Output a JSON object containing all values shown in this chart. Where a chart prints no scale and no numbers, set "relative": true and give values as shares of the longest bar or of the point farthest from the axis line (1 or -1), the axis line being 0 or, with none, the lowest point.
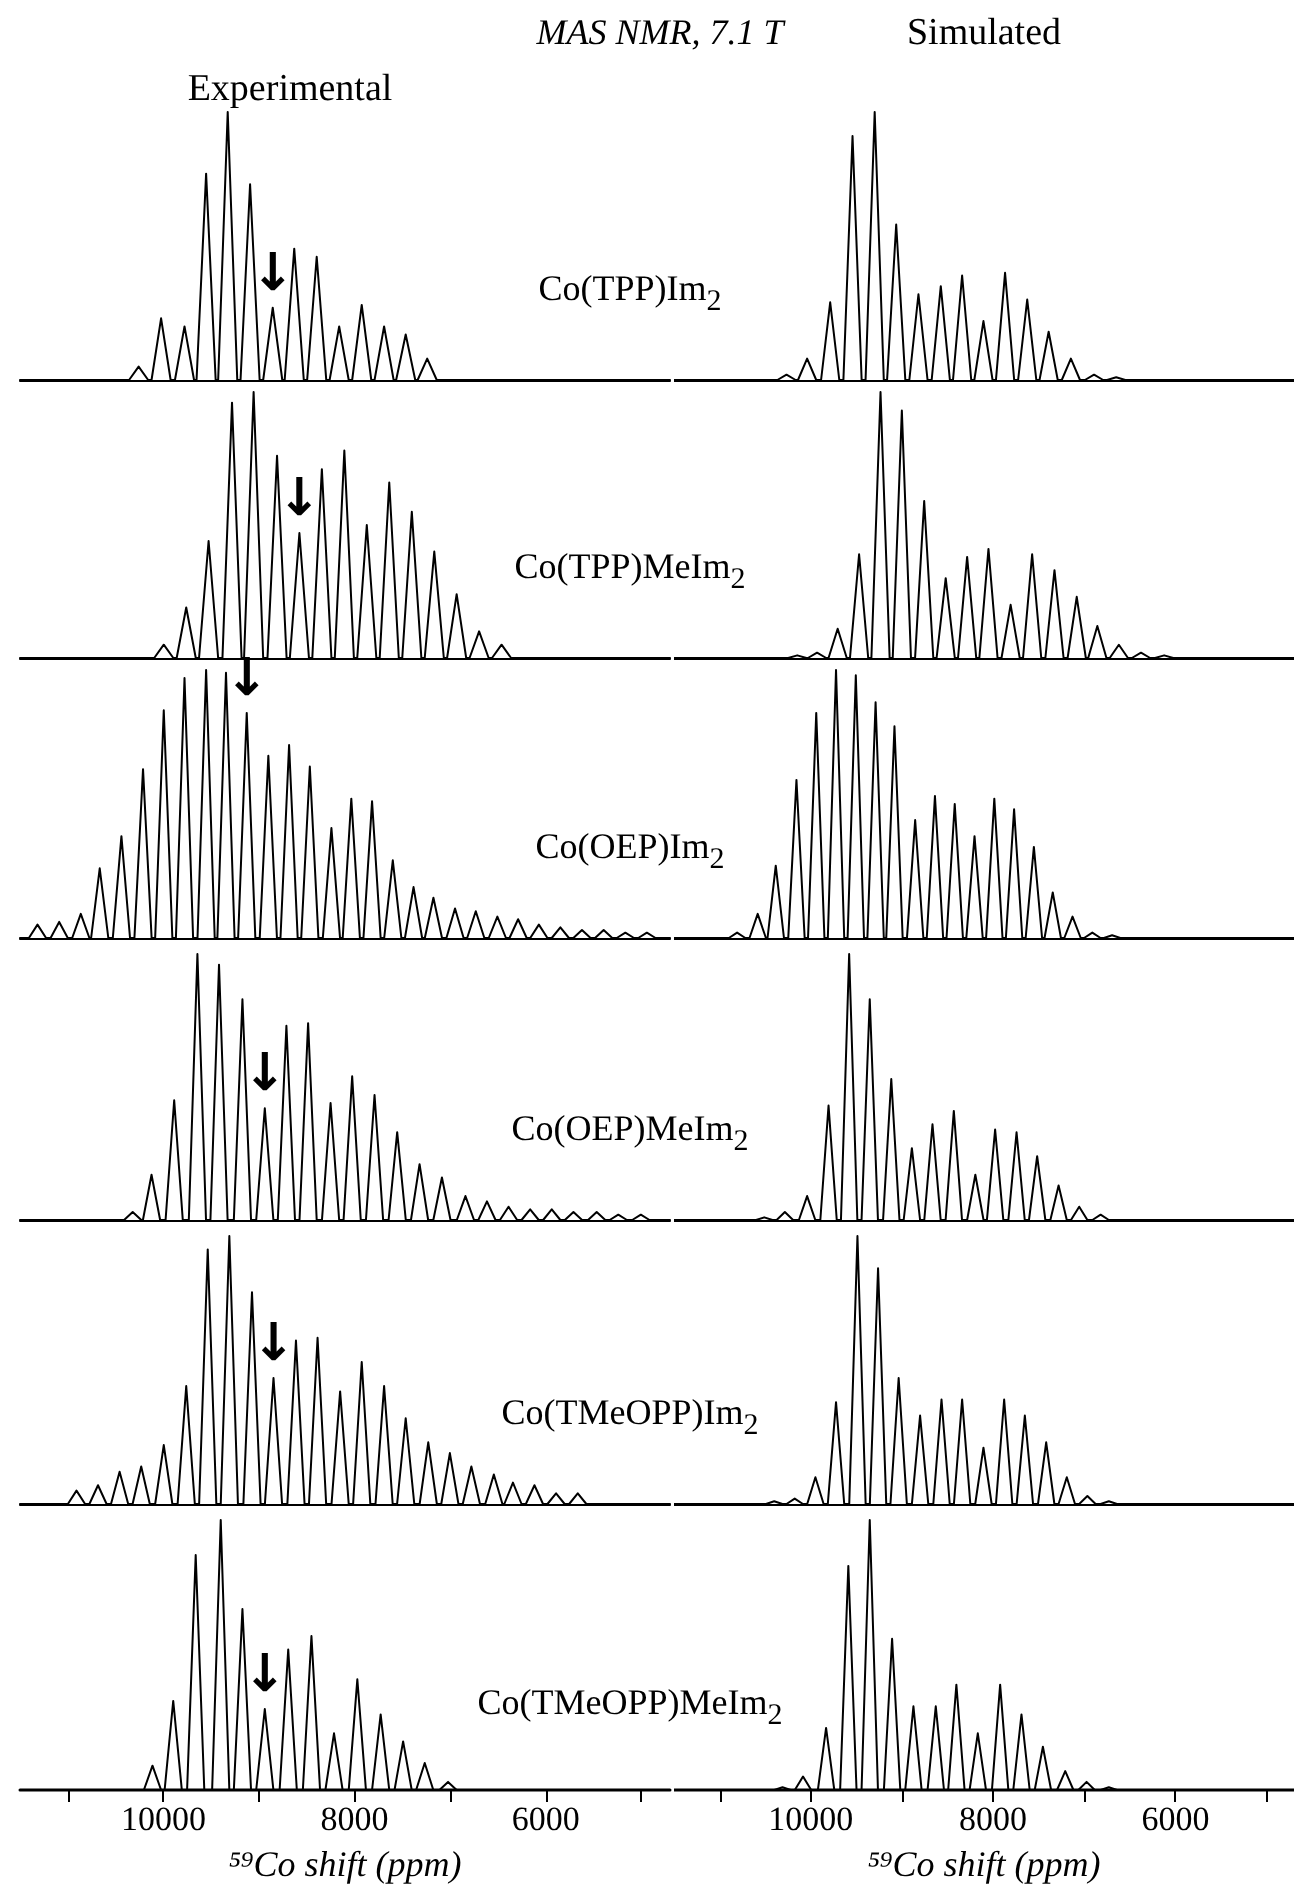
{
  "chart_data": [
    {
      "type": "line",
      "relative": true,
      "title": "Experimental",
      "color": "#000000",
      "xlim": [
        11500,
        4700
      ],
      "annotations": [
        "MAS NMR, 7.1 T",
        {
          "text": "↓",
          "x": 8856,
          "y": 0.27
        }
      ],
      "x": [
        11500,
        10359,
        10259,
        10159,
        10124,
        10024,
        9924,
        9879,
        9779,
        9679,
        9653,
        9553,
        9453,
        9427,
        9327,
        9227,
        9193,
        9093,
        8993,
        8956,
        8856,
        8756,
        8731,
        8631,
        8531,
        8496,
        8396,
        8296,
        8261,
        8161,
        8061,
        8025,
        7925,
        7825,
        7791,
        7691,
        7591,
        7565,
        7465,
        7365,
        7340,
        7240,
        7140,
        4700
      ],
      "values": [
        0,
        0,
        0.05,
        0,
        0,
        0.23,
        0,
        0,
        0.2,
        0,
        0,
        0.77,
        0,
        0,
        1,
        0,
        0,
        0.73,
        0,
        0,
        0.27,
        0,
        0,
        0.49,
        0,
        0,
        0.46,
        0,
        0,
        0.2,
        0,
        0,
        0.28,
        0,
        0,
        0.2,
        0,
        0,
        0.17,
        0,
        0,
        0.08,
        0,
        0
      ]
    },
    {
      "type": "line",
      "relative": true,
      "title": "Simulated",
      "color": "#000000",
      "xlim": [
        11500,
        4700
      ],
      "annotations": [
        "Co(TPP)Im$_{2}$"
      ],
      "x": [
        11500,
        10366,
        10266,
        10166,
        10140,
        10040,
        9940,
        9887,
        9787,
        9687,
        9642,
        9542,
        9442,
        9399,
        9299,
        9199,
        9163,
        9063,
        8963,
        8919,
        8819,
        8719,
        8674,
        8574,
        8474,
        8440,
        8340,
        8240,
        8206,
        8106,
        8006,
        7969,
        7869,
        7769,
        7726,
        7626,
        7526,
        7491,
        7391,
        7291,
        7247,
        7147,
        7047,
        6993,
        6893,
        6793,
        6750,
        6650,
        6550,
        4700
      ],
      "values": [
        0,
        0,
        0.02,
        0,
        0,
        0.08,
        0,
        0,
        0.29,
        0,
        0,
        0.91,
        0,
        0,
        1,
        0,
        0,
        0.58,
        0,
        0,
        0.32,
        0,
        0,
        0.35,
        0,
        0,
        0.39,
        0,
        0,
        0.22,
        0,
        0,
        0.4,
        0,
        0,
        0.3,
        0,
        0,
        0.18,
        0,
        0,
        0.08,
        0,
        0,
        0.02,
        0,
        0,
        0.01,
        0,
        0
      ]
    },
    {
      "type": "line",
      "relative": true,
      "color": "#000000",
      "xlim": [
        11500,
        4700
      ],
      "annotations": [
        {
          "text": "↓",
          "x": 8577,
          "y": 0.47
        }
      ],
      "x": [
        11500,
        10096,
        9996,
        9896,
        9861,
        9761,
        9661,
        9627,
        9527,
        9427,
        9382,
        9282,
        9182,
        9156,
        9056,
        8956,
        8911,
        8811,
        8711,
        8677,
        8577,
        8477,
        8442,
        8342,
        8242,
        8207,
        8107,
        8007,
        7972,
        7872,
        7772,
        7737,
        7637,
        7537,
        7501,
        7401,
        7301,
        7266,
        7166,
        7066,
        7032,
        6932,
        6832,
        6797,
        6697,
        6597,
        6562,
        6462,
        6362,
        4700
      ],
      "values": [
        0,
        0,
        0.05,
        0,
        0,
        0.19,
        0,
        0,
        0.44,
        0,
        0,
        0.96,
        0,
        0,
        1,
        0,
        0,
        0.76,
        0,
        0,
        0.47,
        0,
        0,
        0.71,
        0,
        0,
        0.78,
        0,
        0,
        0.5,
        0,
        0,
        0.66,
        0,
        0,
        0.55,
        0,
        0,
        0.4,
        0,
        0,
        0.24,
        0,
        0,
        0.1,
        0,
        0,
        0.05,
        0,
        0
      ]
    },
    {
      "type": "line",
      "relative": true,
      "color": "#000000",
      "xlim": [
        11500,
        4700
      ],
      "annotations": [
        "Co(TPP)MeIm$_{2}$"
      ],
      "x": [
        11500,
        10248,
        10148,
        10048,
        10031,
        9931,
        9831,
        9805,
        9705,
        9605,
        9570,
        9470,
        9370,
        9335,
        9235,
        9135,
        9101,
        9001,
        8901,
        8856,
        8756,
        8656,
        8620,
        8520,
        8420,
        8385,
        8285,
        8185,
        8151,
        8051,
        7951,
        7908,
        7808,
        7708,
        7672,
        7572,
        7472,
        7427,
        7327,
        7227,
        7183,
        7083,
        6983,
        6957,
        6857,
        6757,
        6721,
        6621,
        6521,
        6478,
        6378,
        6278,
        6224,
        6124,
        6024,
        4700
      ],
      "values": [
        0,
        0,
        0.01,
        0,
        0,
        0.02,
        0,
        0,
        0.11,
        0,
        0,
        0.39,
        0,
        0,
        1,
        0,
        0,
        0.93,
        0,
        0,
        0.59,
        0,
        0,
        0.3,
        0,
        0,
        0.38,
        0,
        0,
        0.41,
        0,
        0,
        0.2,
        0,
        0,
        0.39,
        0,
        0,
        0.33,
        0,
        0,
        0.23,
        0,
        0,
        0.12,
        0,
        0,
        0.05,
        0,
        0,
        0.02,
        0,
        0,
        0.01,
        0,
        0
      ]
    },
    {
      "type": "line",
      "relative": true,
      "color": "#000000",
      "xlim": [
        11500,
        4700
      ],
      "annotations": [
        {
          "text": "↓",
          "x": 9128,
          "y": 0.84
        }
      ],
      "x": [
        11500,
        11407,
        11317,
        11227,
        11180,
        11090,
        11000,
        10954,
        10864,
        10774,
        10756,
        10666,
        10576,
        10529,
        10439,
        10349,
        10303,
        10213,
        10123,
        10086,
        9996,
        9906,
        9869,
        9779,
        9689,
        9643,
        9553,
        9463,
        9435,
        9345,
        9255,
        9218,
        9128,
        9038,
        8992,
        8902,
        8812,
        8775,
        8685,
        8595,
        8558,
        8468,
        8378,
        8332,
        8242,
        8152,
        8124,
        8034,
        7944,
        7907,
        7817,
        7727,
        7690,
        7600,
        7510,
        7473,
        7383,
        7293,
        7265,
        7175,
        7085,
        7039,
        6949,
        6859,
        6822,
        6732,
        6642,
        6596,
        6506,
        6416,
        6379,
        6289,
        6199,
        6162,
        6072,
        5982,
        5937,
        5847,
        5757,
        5711,
        5621,
        5531,
        5484,
        5394,
        5304,
        5257,
        5167,
        5077,
        5032,
        4942,
        4852,
        4700
      ],
      "values": [
        0,
        0,
        0.05,
        0,
        0,
        0.06,
        0,
        0,
        0.09,
        0,
        0,
        0.26,
        0,
        0,
        0.38,
        0,
        0,
        0.63,
        0,
        0,
        0.85,
        0,
        0,
        0.97,
        0,
        0,
        1,
        0,
        0,
        0.99,
        0,
        0,
        0.84,
        0,
        0,
        0.68,
        0,
        0,
        0.72,
        0,
        0,
        0.64,
        0,
        0,
        0.41,
        0,
        0,
        0.52,
        0,
        0,
        0.51,
        0,
        0,
        0.29,
        0,
        0,
        0.19,
        0,
        0,
        0.15,
        0,
        0,
        0.11,
        0,
        0,
        0.1,
        0,
        0,
        0.08,
        0,
        0,
        0.07,
        0,
        0,
        0.05,
        0,
        0,
        0.04,
        0,
        0,
        0.03,
        0,
        0,
        0.03,
        0,
        0,
        0.02,
        0,
        0,
        0.02,
        0,
        0
      ]
    },
    {
      "type": "line",
      "relative": true,
      "color": "#000000",
      "xlim": [
        11500,
        4700
      ],
      "annotations": [
        "Co(OEP)Im$_{2}$"
      ],
      "x": [
        11500,
        10898,
        10808,
        10718,
        10672,
        10582,
        10492,
        10474,
        10384,
        10294,
        10247,
        10157,
        10067,
        10030,
        9940,
        9850,
        9813,
        9723,
        9633,
        9596,
        9506,
        9416,
        9379,
        9289,
        9199,
        9172,
        9082,
        8992,
        8945,
        8855,
        8765,
        8728,
        8638,
        8548,
        8511,
        8421,
        8331,
        8294,
        8204,
        8114,
        8077,
        7987,
        7897,
        7860,
        7770,
        7680,
        7643,
        7553,
        7463,
        7436,
        7346,
        7256,
        7219,
        7129,
        7039,
        7002,
        6912,
        6822,
        6785,
        6695,
        6605,
        4700
      ],
      "values": [
        0,
        0,
        0.02,
        0,
        0,
        0.09,
        0,
        0,
        0.27,
        0,
        0,
        0.59,
        0,
        0,
        0.84,
        0,
        0,
        1,
        0,
        0,
        0.98,
        0,
        0,
        0.88,
        0,
        0,
        0.79,
        0,
        0,
        0.44,
        0,
        0,
        0.53,
        0,
        0,
        0.5,
        0,
        0,
        0.38,
        0,
        0,
        0.52,
        0,
        0,
        0.48,
        0,
        0,
        0.34,
        0,
        0,
        0.17,
        0,
        0,
        0.08,
        0,
        0,
        0.02,
        0,
        0,
        0.01,
        0,
        0
      ]
    },
    {
      "type": "line",
      "relative": true,
      "color": "#000000",
      "xlim": [
        11500,
        4700
      ],
      "annotations": [
        {
          "text": "↓",
          "x": 8939,
          "y": 0.42
        }
      ],
      "x": [
        11500,
        10411,
        10321,
        10231,
        10214,
        10124,
        10034,
        9977,
        9887,
        9797,
        9734,
        9644,
        9554,
        9508,
        9418,
        9328,
        9263,
        9173,
        9083,
        9029,
        8939,
        8849,
        8803,
        8713,
        8623,
        8576,
        8486,
        8396,
        8341,
        8251,
        8161,
        8115,
        8025,
        7935,
        7881,
        7791,
        7701,
        7644,
        7554,
        7464,
        7410,
        7320,
        7230,
        7176,
        7086,
        6996,
        6930,
        6840,
        6750,
        6705,
        6615,
        6525,
        6479,
        6389,
        6299,
        6253,
        6163,
        6073,
        6027,
        5937,
        5847,
        5800,
        5710,
        5620,
        5557,
        5467,
        5377,
        5331,
        5241,
        5151,
        5095,
        5005,
        4915,
        4700
      ],
      "values": [
        0,
        0,
        0.03,
        0,
        0,
        0.17,
        0,
        0,
        0.45,
        0,
        0,
        1,
        0,
        0,
        0.96,
        0,
        0,
        0.83,
        0,
        0,
        0.42,
        0,
        0,
        0.73,
        0,
        0,
        0.74,
        0,
        0,
        0.44,
        0,
        0,
        0.54,
        0,
        0,
        0.47,
        0,
        0,
        0.33,
        0,
        0,
        0.21,
        0,
        0,
        0.16,
        0,
        0,
        0.09,
        0,
        0,
        0.07,
        0,
        0,
        0.05,
        0,
        0,
        0.04,
        0,
        0,
        0.04,
        0,
        0,
        0.03,
        0,
        0,
        0.03,
        0,
        0,
        0.02,
        0,
        0,
        0.02,
        0,
        0
      ]
    },
    {
      "type": "line",
      "relative": true,
      "color": "#000000",
      "xlim": [
        11500,
        4700
      ],
      "annotations": [
        "Co(OEP)MeIm$_{2}$"
      ],
      "x": [
        11500,
        10600,
        10510,
        10420,
        10374,
        10284,
        10194,
        10130,
        10040,
        9950,
        9895,
        9805,
        9715,
        9669,
        9579,
        9489,
        9443,
        9353,
        9263,
        9207,
        9117,
        9027,
        8981,
        8891,
        8801,
        8755,
        8665,
        8575,
        8521,
        8431,
        8341,
        8285,
        8195,
        8105,
        8068,
        7978,
        7888,
        7833,
        7743,
        7653,
        7607,
        7517,
        7427,
        7372,
        7282,
        7192,
        7146,
        7056,
        6966,
        6911,
        6821,
        6731,
        4700
      ],
      "values": [
        0,
        0,
        0.01,
        0,
        0,
        0.03,
        0,
        0,
        0.09,
        0,
        0,
        0.43,
        0,
        0,
        1,
        0,
        0,
        0.83,
        0,
        0,
        0.53,
        0,
        0,
        0.27,
        0,
        0,
        0.36,
        0,
        0,
        0.41,
        0,
        0,
        0.17,
        0,
        0,
        0.34,
        0,
        0,
        0.33,
        0,
        0,
        0.24,
        0,
        0,
        0.13,
        0,
        0,
        0.05,
        0,
        0,
        0.02,
        0,
        0
      ]
    },
    {
      "type": "line",
      "relative": true,
      "color": "#000000",
      "xlim": [
        11500,
        4700
      ],
      "annotations": [
        {
          "text": "↓",
          "x": 8848,
          "y": 0.47
        }
      ],
      "x": [
        11500,
        10999,
        10909,
        10819,
        10774,
        10684,
        10594,
        10548,
        10458,
        10368,
        10322,
        10232,
        10142,
        10086,
        9996,
        9906,
        9851,
        9761,
        9671,
        9626,
        9536,
        9446,
        9400,
        9310,
        9220,
        9163,
        9073,
        8983,
        8938,
        8848,
        8758,
        8703,
        8613,
        8523,
        8477,
        8387,
        8297,
        8241,
        8151,
        8061,
        8015,
        7925,
        7835,
        7781,
        7691,
        7601,
        7555,
        7465,
        7375,
        7319,
        7229,
        7139,
        7093,
        7003,
        6913,
        6868,
        6778,
        6688,
        6633,
        6543,
        6453,
        6433,
        6343,
        6253,
        6208,
        6118,
        6028,
        5982,
        5892,
        5802,
        5755,
        5665,
        5575,
        4700
      ],
      "values": [
        0,
        0,
        0.05,
        0,
        0,
        0.07,
        0,
        0,
        0.12,
        0,
        0,
        0.14,
        0,
        0,
        0.22,
        0,
        0,
        0.44,
        0,
        0,
        0.95,
        0,
        0,
        1,
        0,
        0,
        0.79,
        0,
        0,
        0.47,
        0,
        0,
        0.61,
        0,
        0,
        0.62,
        0,
        0,
        0.42,
        0,
        0,
        0.53,
        0,
        0,
        0.44,
        0,
        0,
        0.32,
        0,
        0,
        0.23,
        0,
        0,
        0.19,
        0,
        0,
        0.14,
        0,
        0,
        0.11,
        0,
        0,
        0.08,
        0,
        0,
        0.07,
        0,
        0,
        0.04,
        0,
        0,
        0.04,
        0,
        0
      ]
    },
    {
      "type": "line",
      "relative": true,
      "color": "#000000",
      "xlim": [
        11500,
        4700
      ],
      "annotations": [
        "Co(TMeOPP)Im$_{2}$"
      ],
      "x": [
        11500,
        10491,
        10401,
        10311,
        10266,
        10176,
        10086,
        10039,
        9949,
        9859,
        9813,
        9723,
        9633,
        9578,
        9488,
        9398,
        9352,
        9262,
        9172,
        9126,
        9036,
        8946,
        8891,
        8801,
        8711,
        8656,
        8566,
        8476,
        8430,
        8340,
        8250,
        8196,
        8106,
        8016,
        7969,
        7879,
        7789,
        7742,
        7652,
        7562,
        7508,
        7418,
        7328,
        7282,
        7192,
        7102,
        7056,
        6966,
        6876,
        6821,
        6731,
        6641,
        4700
      ],
      "values": [
        0,
        0,
        0.01,
        0,
        0,
        0.02,
        0,
        0,
        0.1,
        0,
        0,
        0.38,
        0,
        0,
        1,
        0,
        0,
        0.88,
        0,
        0,
        0.47,
        0,
        0,
        0.33,
        0,
        0,
        0.39,
        0,
        0,
        0.39,
        0,
        0,
        0.21,
        0,
        0,
        0.39,
        0,
        0,
        0.33,
        0,
        0,
        0.23,
        0,
        0,
        0.1,
        0,
        0,
        0.03,
        0,
        0,
        0.01,
        0,
        0
      ]
    },
    {
      "type": "line",
      "relative": true,
      "color": "#000000",
      "xlim": [
        11500,
        4700
      ],
      "xlabel": "⁵⁹Co shift (ppm)",
      "xticks": [
        {
          "value": 11000,
          "label": null
        },
        10000,
        {
          "value": 9000,
          "label": null
        },
        8000,
        {
          "value": 7000,
          "label": null
        },
        6000,
        {
          "value": 5000,
          "label": null
        }
      ],
      "annotations": [
        {
          "text": "↓",
          "x": 8939,
          "y": 0.3
        }
      ],
      "x": [
        11500,
        10204,
        10114,
        10024,
        9987,
        9897,
        9807,
        9752,
        9662,
        9572,
        9490,
        9400,
        9310,
        9263,
        9173,
        9083,
        9029,
        8939,
        8849,
        8784,
        8694,
        8604,
        8541,
        8451,
        8361,
        8305,
        8215,
        8125,
        8061,
        7971,
        7881,
        7817,
        7727,
        7637,
        7582,
        7492,
        7402,
        7356,
        7266,
        7176,
        7112,
        7022,
        6932,
        4700
      ],
      "values": [
        0,
        0,
        0.09,
        0,
        0,
        0.33,
        0,
        0,
        0.87,
        0,
        0,
        1,
        0,
        0,
        0.67,
        0,
        0,
        0.3,
        0,
        0,
        0.52,
        0,
        0,
        0.57,
        0,
        0,
        0.21,
        0,
        0,
        0.41,
        0,
        0,
        0.28,
        0,
        0,
        0.18,
        0,
        0,
        0.1,
        0,
        0,
        0.03,
        0,
        0
      ]
    },
    {
      "type": "line",
      "relative": true,
      "color": "#000000",
      "xlim": [
        11500,
        4700
      ],
      "xlabel": "⁵⁹Co shift (ppm)",
      "xticks": [
        {
          "value": 11000,
          "label": null
        },
        10000,
        {
          "value": 9000,
          "label": null
        },
        8000,
        {
          "value": 7000,
          "label": null
        },
        6000,
        {
          "value": 5000,
          "label": null
        }
      ],
      "annotations": [
        "Co(TMeOPP)MeIm$_{2}$"
      ],
      "x": [
        11500,
        10400,
        10310,
        10220,
        10175,
        10085,
        9995,
        9922,
        9832,
        9742,
        9678,
        9588,
        9498,
        9443,
        9353,
        9263,
        9198,
        9108,
        9018,
        8964,
        8874,
        8784,
        8719,
        8629,
        8539,
        8493,
        8403,
        8313,
        8258,
        8168,
        8078,
        8013,
        7923,
        7833,
        7779,
        7689,
        7599,
        7544,
        7454,
        7364,
        7299,
        7209,
        7119,
        7065,
        6975,
        6885,
        6821,
        6731,
        6641,
        4700
      ],
      "values": [
        0,
        0,
        0.01,
        0,
        0,
        0.05,
        0,
        0,
        0.23,
        0,
        0,
        0.83,
        0,
        0,
        1,
        0,
        0,
        0.56,
        0,
        0,
        0.31,
        0,
        0,
        0.31,
        0,
        0,
        0.39,
        0,
        0,
        0.21,
        0,
        0,
        0.39,
        0,
        0,
        0.28,
        0,
        0,
        0.16,
        0,
        0,
        0.07,
        0,
        0,
        0.03,
        0,
        0,
        0.01,
        0,
        0
      ]
    }
  ]
}
